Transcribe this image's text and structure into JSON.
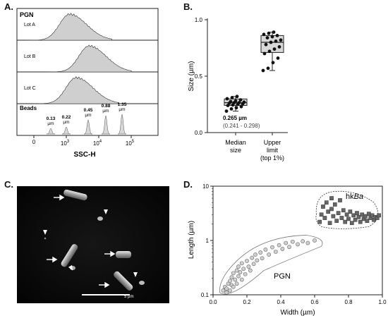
{
  "panels": {
    "a": {
      "letter": "A.",
      "group_label": "PGN",
      "lots": [
        "Lot A",
        "Lot B",
        "Lot C"
      ],
      "beads_label": "Beads",
      "bead_peaks": [
        {
          "size": "0.13",
          "unit": "µm",
          "pos": 0.13
        },
        {
          "size": "0.22",
          "unit": "µm",
          "pos": 0.22
        },
        {
          "size": "0.45",
          "unit": "µm",
          "pos": 0.45
        },
        {
          "size": "0.88",
          "unit": "µm",
          "pos": 0.88
        },
        {
          "size": "1.35",
          "unit": "µm",
          "pos": 1.35
        }
      ],
      "lot_peak_positions": [
        3.1,
        3.7,
        3.3
      ],
      "xlabel": "SSC-H",
      "ticks": {
        "zero": "0",
        "exp3": "3",
        "exp4": "4",
        "exp5": "5",
        "base": "10"
      },
      "fill_color": "#cfcfcf"
    },
    "b": {
      "letter": "B.",
      "ylabel": "Size (µm)",
      "yticks": [
        "0.0",
        "0.5",
        "1.0"
      ],
      "xcat1": [
        "Median",
        "size"
      ],
      "xcat2": [
        "Upper",
        "limit",
        "(top 1%)"
      ],
      "annot_value": "0.265 µm",
      "annot_range": "(0.241 - 0.298)"
    },
    "c": {
      "letter": "C.",
      "scale_label": "5 µm"
    },
    "d": {
      "letter": "D.",
      "ylabel": "Length (µm)",
      "xlabel": "Width (µm)",
      "xticks": [
        "0.0",
        "0.2",
        "0.4",
        "0.6",
        "0.8",
        "1.0"
      ],
      "yticks": [
        "0.1",
        "1",
        "10"
      ],
      "label_pgn": "PGN",
      "label_hk": "hk",
      "label_hk_italic": "Ba"
    }
  },
  "chart_data": [
    {
      "type": "area",
      "panel": "A",
      "title": "",
      "xlabel": "SSC-H",
      "ylabel": "",
      "series": [
        {
          "name": "Lot A",
          "peak_log10_SSC": 3.1
        },
        {
          "name": "Lot B",
          "peak_log10_SSC": 3.7
        },
        {
          "name": "Lot C",
          "peak_log10_SSC": 3.3
        }
      ],
      "bead_sizes_um": [
        0.13,
        0.22,
        0.45,
        0.88,
        1.35
      ],
      "x_ticks": [
        "0",
        "10^3",
        "10^4",
        "10^5"
      ]
    },
    {
      "type": "scatter",
      "panel": "B",
      "ylabel": "Size (µm)",
      "ylim": [
        0,
        1.0
      ],
      "categories": [
        "Median size",
        "Upper limit (top 1%)"
      ],
      "median_size": {
        "median": 0.265,
        "q1": 0.241,
        "q3": 0.298,
        "min": 0.19,
        "max": 0.32,
        "values": [
          0.19,
          0.21,
          0.22,
          0.23,
          0.24,
          0.245,
          0.25,
          0.255,
          0.26,
          0.265,
          0.265,
          0.27,
          0.275,
          0.28,
          0.29,
          0.3,
          0.31,
          0.32
        ]
      },
      "upper_limit": {
        "median": 0.8,
        "q1": 0.71,
        "q3": 0.86,
        "min": 0.55,
        "max": 0.89,
        "values": [
          0.55,
          0.57,
          0.62,
          0.66,
          0.7,
          0.72,
          0.74,
          0.76,
          0.78,
          0.8,
          0.81,
          0.82,
          0.84,
          0.85,
          0.86,
          0.87,
          0.88,
          0.89
        ]
      }
    },
    {
      "type": "scatter",
      "panel": "D",
      "xlabel": "Width (µm)",
      "ylabel": "Length (µm)",
      "xlim": [
        0,
        1.0
      ],
      "ylim": [
        0.1,
        10
      ],
      "yscale": "log",
      "series": [
        {
          "name": "PGN",
          "marker": "circle",
          "points": [
            [
              0.06,
              0.12
            ],
            [
              0.07,
              0.14
            ],
            [
              0.08,
              0.11
            ],
            [
              0.08,
              0.13
            ],
            [
              0.09,
              0.16
            ],
            [
              0.1,
              0.12
            ],
            [
              0.1,
              0.18
            ],
            [
              0.11,
              0.15
            ],
            [
              0.11,
              0.21
            ],
            [
              0.12,
              0.14
            ],
            [
              0.12,
              0.25
            ],
            [
              0.13,
              0.19
            ],
            [
              0.14,
              0.16
            ],
            [
              0.14,
              0.28
            ],
            [
              0.15,
              0.22
            ],
            [
              0.15,
              0.33
            ],
            [
              0.16,
              0.26
            ],
            [
              0.17,
              0.19
            ],
            [
              0.17,
              0.38
            ],
            [
              0.18,
              0.3
            ],
            [
              0.19,
              0.24
            ],
            [
              0.2,
              0.42
            ],
            [
              0.21,
              0.33
            ],
            [
              0.22,
              0.28
            ],
            [
              0.23,
              0.48
            ],
            [
              0.24,
              0.37
            ],
            [
              0.25,
              0.55
            ],
            [
              0.26,
              0.43
            ],
            [
              0.28,
              0.6
            ],
            [
              0.29,
              0.47
            ],
            [
              0.31,
              0.68
            ],
            [
              0.33,
              0.55
            ],
            [
              0.35,
              0.75
            ],
            [
              0.37,
              0.62
            ],
            [
              0.39,
              0.82
            ],
            [
              0.41,
              0.7
            ],
            [
              0.43,
              0.9
            ],
            [
              0.45,
              0.76
            ],
            [
              0.47,
              0.95
            ],
            [
              0.5,
              0.85
            ],
            [
              0.53,
              0.97
            ],
            [
              0.56,
              0.9
            ],
            [
              0.6,
              1.0
            ]
          ]
        },
        {
          "name": "hkBa",
          "marker": "square",
          "points": [
            [
              0.63,
              2.2
            ],
            [
              0.64,
              3.0
            ],
            [
              0.65,
              4.2
            ],
            [
              0.66,
              2.6
            ],
            [
              0.67,
              5.0
            ],
            [
              0.68,
              3.4
            ],
            [
              0.69,
              2.1
            ],
            [
              0.7,
              6.0
            ],
            [
              0.7,
              3.8
            ],
            [
              0.71,
              2.8
            ],
            [
              0.72,
              4.6
            ],
            [
              0.73,
              2.3
            ],
            [
              0.74,
              3.2
            ],
            [
              0.75,
              5.5
            ],
            [
              0.76,
              2.6
            ],
            [
              0.77,
              3.6
            ],
            [
              0.78,
              2.2
            ],
            [
              0.79,
              3.0
            ],
            [
              0.8,
              2.5
            ],
            [
              0.81,
              3.4
            ],
            [
              0.82,
              2.1
            ],
            [
              0.83,
              2.9
            ],
            [
              0.84,
              2.4
            ],
            [
              0.85,
              3.2
            ],
            [
              0.86,
              2.7
            ],
            [
              0.87,
              2.2
            ],
            [
              0.88,
              3.0
            ],
            [
              0.89,
              2.5
            ],
            [
              0.9,
              2.8
            ],
            [
              0.91,
              2.3
            ],
            [
              0.92,
              3.1
            ],
            [
              0.93,
              2.6
            ],
            [
              0.94,
              2.9
            ],
            [
              0.95,
              2.4
            ],
            [
              0.96,
              2.7
            ],
            [
              0.97,
              2.6
            ],
            [
              0.98,
              2.9
            ]
          ]
        }
      ]
    }
  ]
}
